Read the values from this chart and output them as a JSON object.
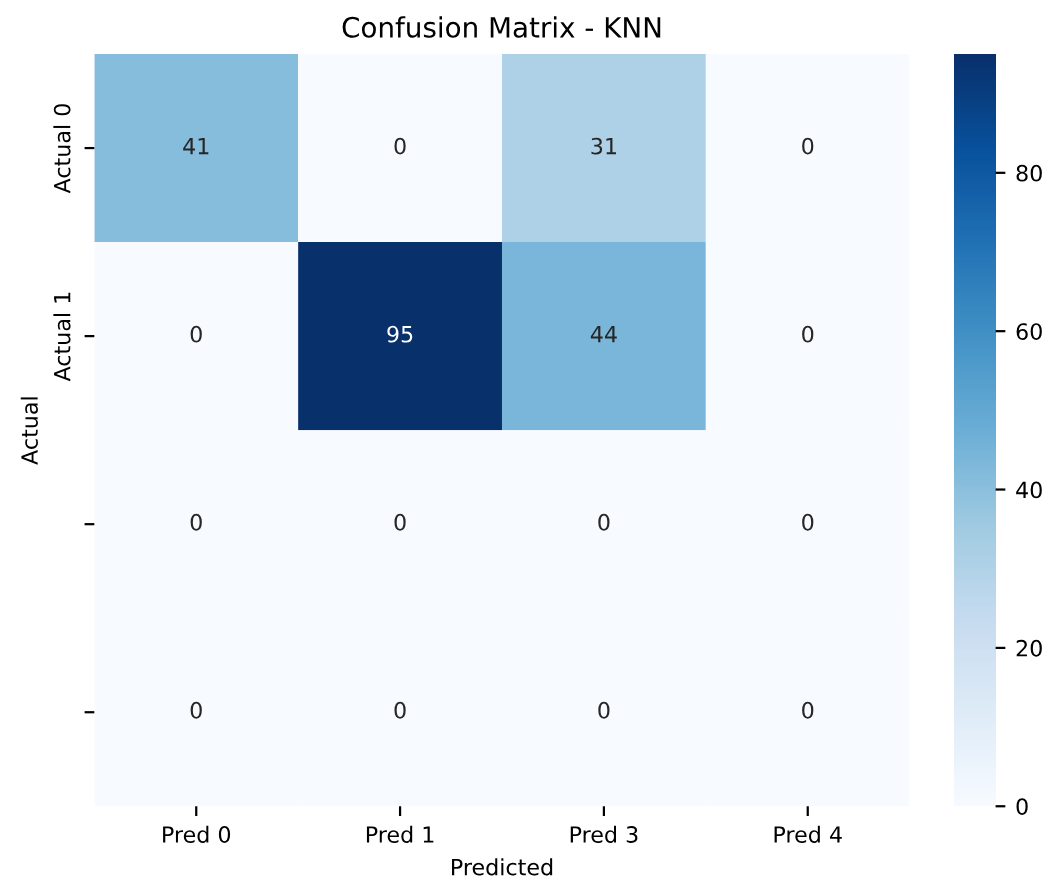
{
  "chart_data": {
    "type": "heatmap",
    "title": "Confusion Matrix - KNN",
    "xlabel": "Predicted",
    "ylabel": "Actual",
    "categories": [
      "Pred 0",
      "Pred 1",
      "Pred 3",
      "Pred 4"
    ],
    "y_categories": [
      "Actual 0",
      "Actual 1",
      null,
      null
    ],
    "cells": [
      [
        41,
        0,
        31,
        0
      ],
      [
        0,
        95,
        44,
        0
      ],
      [
        0,
        0,
        0,
        0
      ],
      [
        0,
        0,
        0,
        0
      ]
    ],
    "data_labels": true,
    "clim": [
      0,
      95
    ],
    "cticks": [
      0,
      20,
      40,
      60,
      80
    ]
  }
}
